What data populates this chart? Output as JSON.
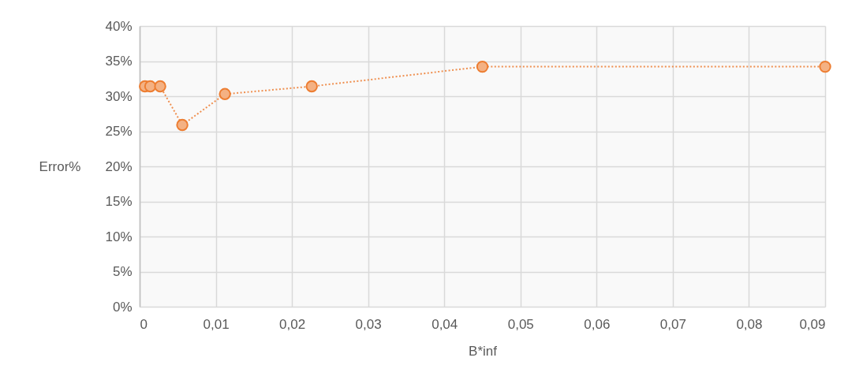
{
  "chart_data": {
    "type": "line",
    "xlabel": "B*inf",
    "ylabel": "Error%",
    "x": [
      0.0007,
      0.0014,
      0.0027,
      0.0056,
      0.0112,
      0.0226,
      0.045,
      0.09
    ],
    "series": [
      {
        "color": "#ed7d31",
        "values": [
          31.4,
          31.4,
          31.4,
          25.9,
          30.3,
          31.4,
          34.2,
          34.2
        ]
      }
    ],
    "xlim": [
      0,
      0.09
    ],
    "xticks": [
      0,
      {
        "value": 0.01,
        "label": "0,01"
      },
      {
        "value": 0.02,
        "label": "0,02"
      },
      {
        "value": 0.03,
        "label": "0,03"
      },
      {
        "value": 0.04,
        "label": "0,04"
      },
      {
        "value": 0.05,
        "label": "0,05"
      },
      {
        "value": 0.06,
        "label": "0,06"
      },
      {
        "value": 0.07,
        "label": "0,07"
      },
      {
        "value": 0.08,
        "label": "0,08"
      },
      {
        "value": 0.09,
        "label": "0,09"
      }
    ],
    "ylim": [
      0,
      40
    ],
    "yticks": [
      {
        "value": 0,
        "label": "0%"
      },
      {
        "value": 5,
        "label": "5%"
      },
      {
        "value": 10,
        "label": "10%"
      },
      {
        "value": 15,
        "label": "15%"
      },
      {
        "value": 20,
        "label": "20%"
      },
      {
        "value": 25,
        "label": "25%"
      },
      {
        "value": 30,
        "label": "30%"
      },
      {
        "value": 35,
        "label": "35%"
      },
      {
        "value": 40,
        "label": "40%"
      }
    ],
    "grid": true,
    "legend": false,
    "marker": "circle",
    "line_style": "dotted"
  }
}
